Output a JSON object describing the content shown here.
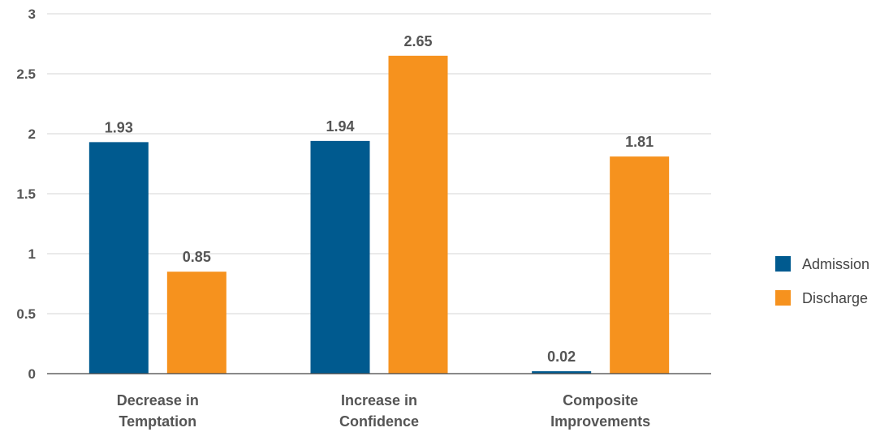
{
  "chart_data": {
    "type": "bar",
    "categories": [
      [
        "Decrease in",
        "Temptation"
      ],
      [
        "Increase in",
        "Confidence"
      ],
      [
        "Composite",
        "Improvements"
      ]
    ],
    "series": [
      {
        "name": "Admission",
        "color": "#005a8f",
        "values": [
          1.93,
          1.94,
          0.02
        ],
        "labels": [
          "1.93",
          "1.94",
          "0.02"
        ]
      },
      {
        "name": "Discharge",
        "color": "#f6921e",
        "values": [
          0.85,
          2.65,
          1.81
        ],
        "labels": [
          "0.85",
          "2.65",
          "1.81"
        ]
      }
    ],
    "yticks": [
      "0",
      "0.5",
      "1",
      "1.5",
      "2",
      "2.5",
      "3"
    ],
    "ylim": [
      0,
      3
    ],
    "title": "",
    "xlabel": "",
    "ylabel": "",
    "grid": true,
    "legend": "right"
  }
}
